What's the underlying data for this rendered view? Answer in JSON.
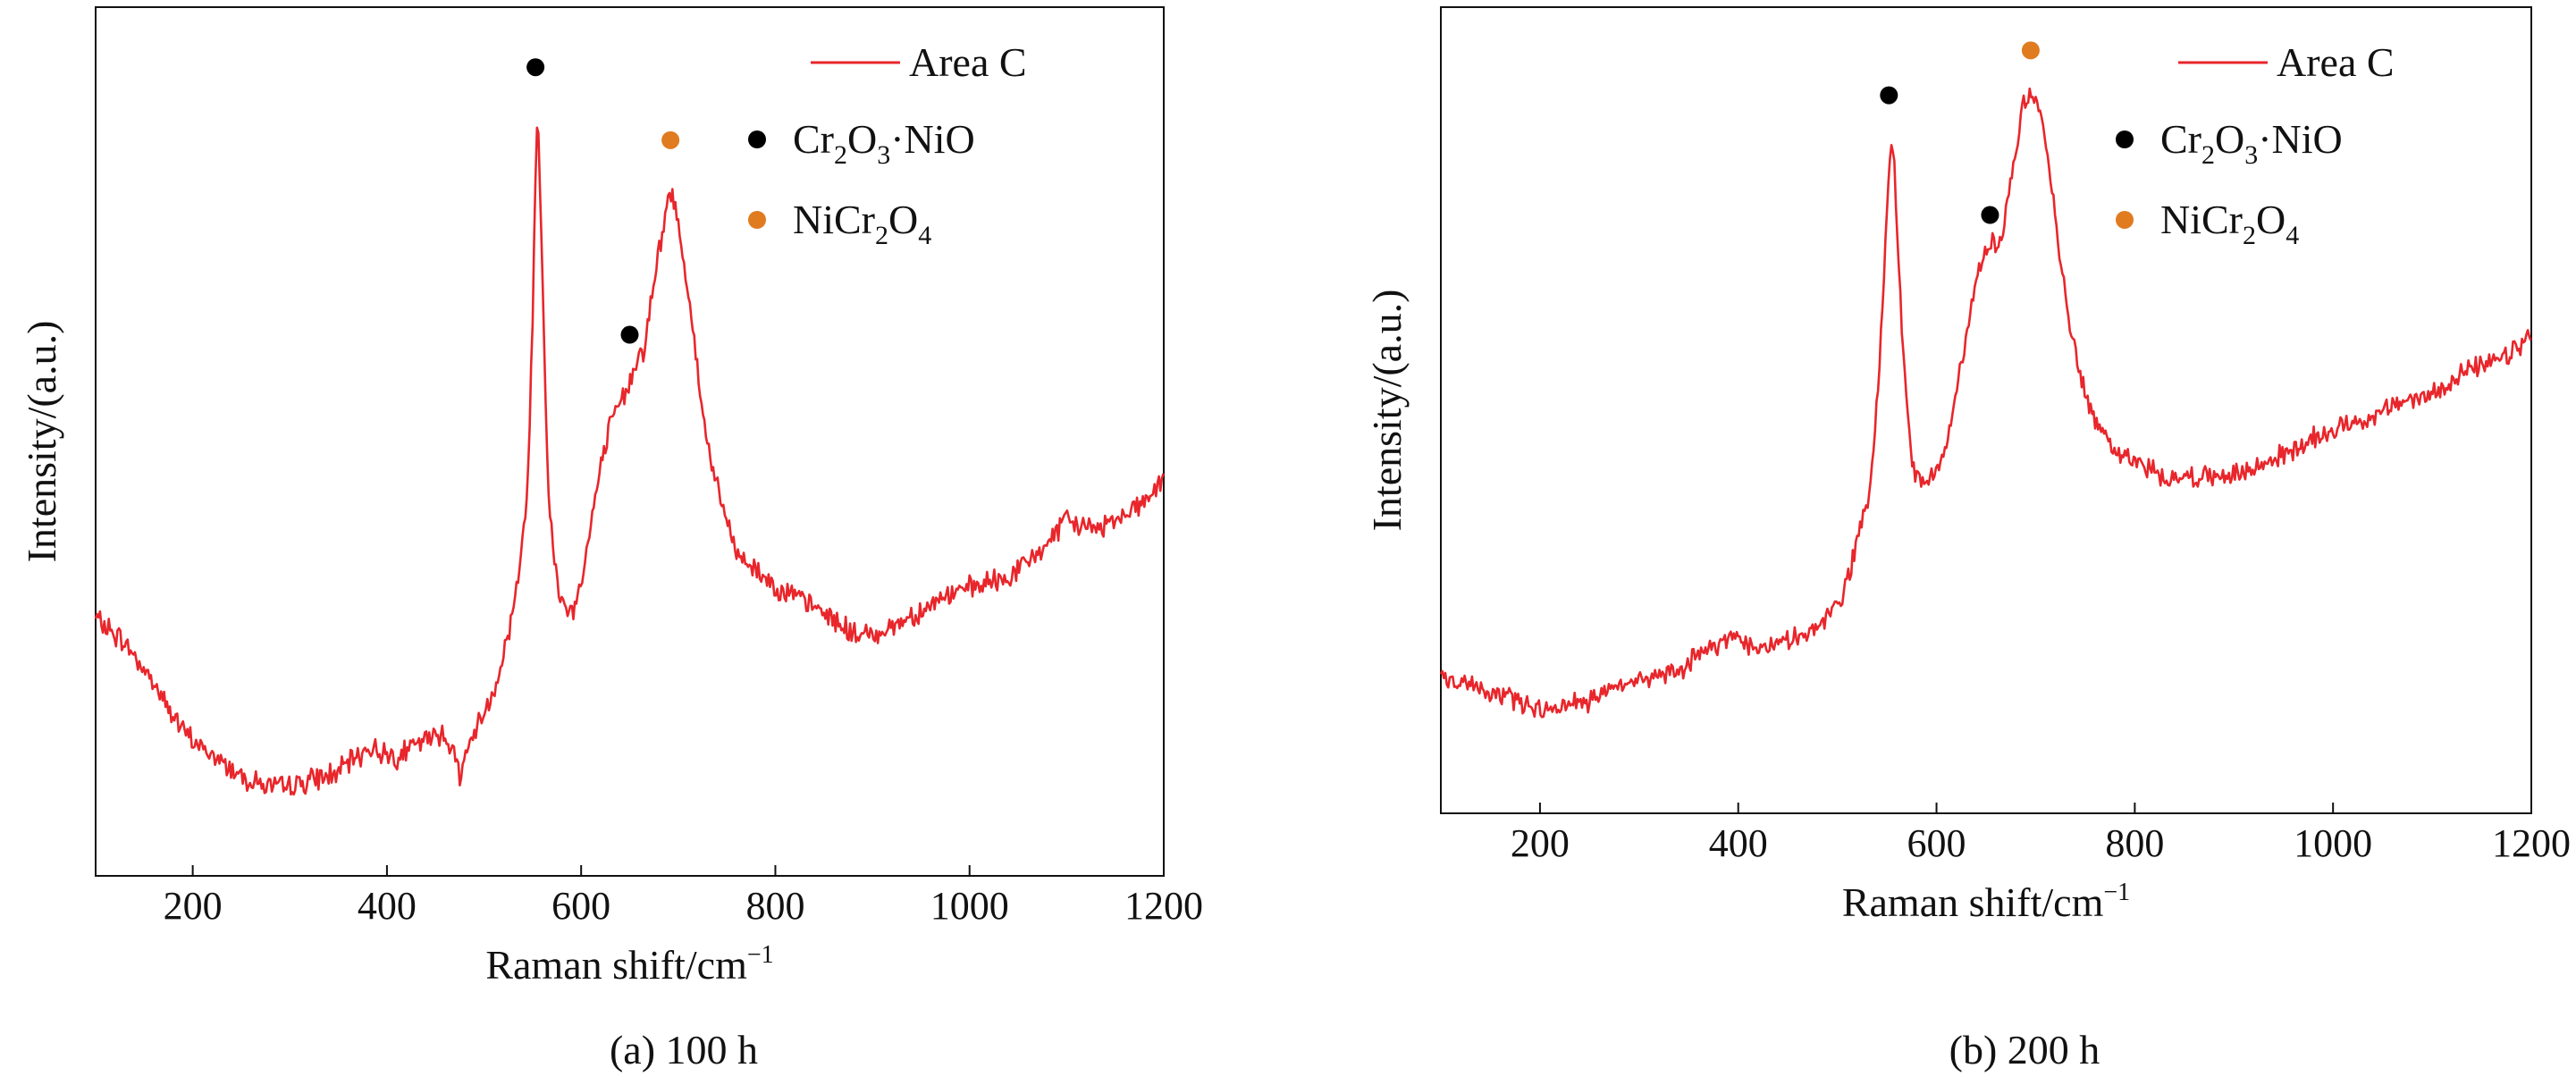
{
  "figure": {
    "caption_a": "(a) 100 h",
    "caption_b": "(b) 200 h"
  },
  "chart_data": [
    {
      "type": "line",
      "panel": "(a) 100 h",
      "xlabel": "Raman shift/cm",
      "xlabel_sup": "−1",
      "ylabel": "Intensity/(a.u.)",
      "xlim": [
        100,
        1200
      ],
      "ylim": [
        0,
        100
      ],
      "xticks": [
        200,
        400,
        600,
        800,
        1000,
        1200
      ],
      "xtick_labels": [
        "200",
        "400",
        "600",
        "800",
        "1000",
        "1200"
      ],
      "grid": false,
      "legend_position": "top-right",
      "legend": {
        "line_label": "Area C",
        "markers": [
          {
            "label": "Cr2O3·NiO",
            "parts": [
              "Cr",
              "2",
              "O",
              "3",
              "·NiO"
            ],
            "color": "#000000"
          },
          {
            "label": "NiCr2O4",
            "parts": [
              "NiCr",
              "2",
              "O",
              "4"
            ],
            "color": "#e07b1f"
          }
        ]
      },
      "series": [
        {
          "name": "Area C",
          "color": "#e8262b",
          "points": [
            [
              100,
              29
            ],
            [
              130,
              26
            ],
            [
              160,
              21
            ],
            [
              190,
              15
            ],
            [
              220,
              12
            ],
            [
              260,
              9
            ],
            [
              290,
              8
            ],
            [
              320,
              9
            ],
            [
              350,
              10
            ],
            [
              380,
              13
            ],
            [
              410,
              12
            ],
            [
              440,
              14
            ],
            [
              460,
              15
            ],
            [
              475,
              10
            ],
            [
              490,
              15
            ],
            [
              510,
              20
            ],
            [
              525,
              27
            ],
            [
              538,
              36
            ],
            [
              546,
              48
            ],
            [
              550,
              66
            ],
            [
              553,
              84
            ],
            [
              555,
              92
            ],
            [
              557,
              86
            ],
            [
              561,
              68
            ],
            [
              566,
              45
            ],
            [
              572,
              36
            ],
            [
              580,
              31
            ],
            [
              592,
              30
            ],
            [
              604,
              36
            ],
            [
              616,
              45
            ],
            [
              628,
              52
            ],
            [
              642,
              56
            ],
            [
              650,
              58
            ],
            [
              656,
              61
            ],
            [
              664,
              62
            ],
            [
              672,
              68
            ],
            [
              680,
              74
            ],
            [
              686,
              78
            ],
            [
              692,
              82
            ],
            [
              700,
              78
            ],
            [
              712,
              68
            ],
            [
              725,
              54
            ],
            [
              740,
              45
            ],
            [
              760,
              37
            ],
            [
              780,
              35
            ],
            [
              800,
              33
            ],
            [
              830,
              31
            ],
            [
              860,
              29
            ],
            [
              880,
              27
            ],
            [
              900,
              27
            ],
            [
              920,
              28
            ],
            [
              950,
              30
            ],
            [
              980,
              32
            ],
            [
              1010,
              33
            ],
            [
              1040,
              34
            ],
            [
              1070,
              37
            ],
            [
              1100,
              41
            ],
            [
              1130,
              40
            ],
            [
              1160,
              42
            ],
            [
              1185,
              44
            ],
            [
              1200,
              46
            ]
          ]
        }
      ],
      "markers": [
        {
          "x": 553,
          "y": 97,
          "color": "#000000"
        },
        {
          "x": 650,
          "y": 64,
          "color": "#000000"
        },
        {
          "x": 692,
          "y": 88,
          "color": "#e07b1f"
        }
      ]
    },
    {
      "type": "line",
      "panel": "(b) 200 h",
      "xlabel": "Raman shift/cm",
      "xlabel_sup": "−1",
      "ylabel": "Intensity/(a.u.)",
      "xlim": [
        100,
        1200
      ],
      "ylim": [
        0,
        100
      ],
      "xticks": [
        200,
        400,
        600,
        800,
        1000,
        1200
      ],
      "xtick_labels": [
        "200",
        "400",
        "600",
        "800",
        "1000",
        "1200"
      ],
      "grid": false,
      "legend_position": "top-right",
      "legend": {
        "line_label": "Area C",
        "markers": [
          {
            "label": "Cr2O3·NiO",
            "parts": [
              "Cr",
              "2",
              "O",
              "3",
              "·NiO"
            ],
            "color": "#000000"
          },
          {
            "label": "NiCr2O4",
            "parts": [
              "NiCr",
              "2",
              "O",
              "4"
            ],
            "color": "#e07b1f"
          }
        ]
      },
      "series": [
        {
          "name": "Area C",
          "color": "#e8262b",
          "points": [
            [
              100,
              15
            ],
            [
              130,
              14
            ],
            [
              160,
              13
            ],
            [
              200,
              11
            ],
            [
              250,
              12
            ],
            [
              300,
              15
            ],
            [
              340,
              16
            ],
            [
              370,
              19
            ],
            [
              395,
              21
            ],
            [
              420,
              19
            ],
            [
              450,
              20
            ],
            [
              470,
              21
            ],
            [
              490,
              23
            ],
            [
              505,
              26
            ],
            [
              520,
              33
            ],
            [
              533,
              40
            ],
            [
              542,
              55
            ],
            [
              548,
              72
            ],
            [
              552,
              83
            ],
            [
              555,
              87
            ],
            [
              558,
              82
            ],
            [
              562,
              70
            ],
            [
              568,
              55
            ],
            [
              575,
              44
            ],
            [
              584,
              41
            ],
            [
              596,
              42
            ],
            [
              608,
              46
            ],
            [
              620,
              53
            ],
            [
              632,
              62
            ],
            [
              642,
              70
            ],
            [
              650,
              72
            ],
            [
              656,
              74
            ],
            [
              662,
              72
            ],
            [
              670,
              78
            ],
            [
              680,
              86
            ],
            [
              688,
              92
            ],
            [
              695,
              94
            ],
            [
              702,
              92
            ],
            [
              712,
              85
            ],
            [
              722,
              74
            ],
            [
              732,
              64
            ],
            [
              745,
              56
            ],
            [
              760,
              49
            ],
            [
              780,
              46
            ],
            [
              800,
              44
            ],
            [
              830,
              42
            ],
            [
              860,
              42
            ],
            [
              890,
              42
            ],
            [
              920,
              43
            ],
            [
              950,
              45
            ],
            [
              980,
              47
            ],
            [
              1010,
              49
            ],
            [
              1040,
              50
            ],
            [
              1070,
              52
            ],
            [
              1100,
              53
            ],
            [
              1130,
              56
            ],
            [
              1160,
              57
            ],
            [
              1185,
              59
            ],
            [
              1200,
              61
            ]
          ]
        }
      ],
      "markers": [
        {
          "x": 552,
          "y": 93,
          "color": "#000000"
        },
        {
          "x": 654,
          "y": 77,
          "color": "#000000"
        },
        {
          "x": 695,
          "y": 99,
          "color": "#e07b1f"
        }
      ]
    }
  ]
}
